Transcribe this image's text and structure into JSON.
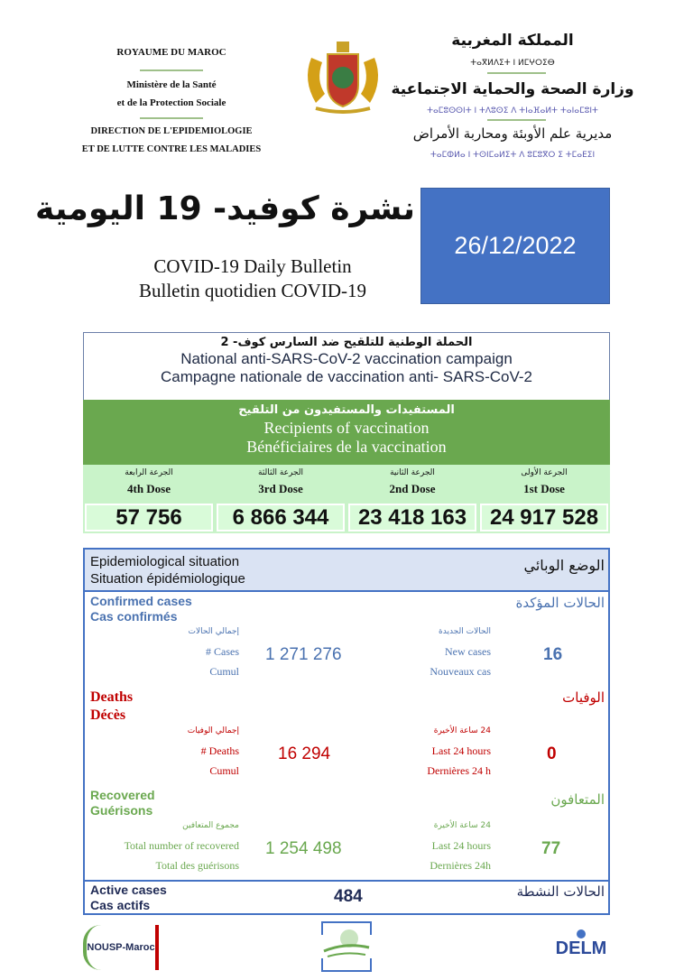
{
  "header": {
    "left": [
      "ROYAUME DU MAROC",
      "Ministère de la Santé",
      "et de la Protection Sociale",
      "DIRECTION DE L'EPIDEMIOLOGIE",
      "ET DE LUTTE CONTRE LES MALADIES"
    ],
    "right_ar": [
      "المملكة المغربية",
      "وزارة الصحة والحماية الاجتماعية",
      "مديرية علم الأوبئة ومحاربة الأمراض"
    ],
    "right_tif": [
      "ⵜⴰⴳⵍⴷⵉⵜ ⵏ ⵍⵎⵖⵔⵉⴱ",
      "ⵜⴰⵎⵓⵙⵙⵏⵜ ⵏ ⵜⴷⵓⵙⵉ ⴷ ⵜⵏⴰⴼⴰⵍⵜ ⵜⴰⵏⴰⵎⵓⵏⵜ",
      "ⵜⴰⵎⵀⵍⴰ ⵏ ⵜⵙⵏⵎⴰⵍⵉⵜ ⴷ ⵓⵎⵓⴳⵔ ⵉ ⵜⵎⴰⴹⵉⵏ"
    ]
  },
  "title": {
    "ar": "نشرة كوفيد- 19 اليومية",
    "en": "COVID-19 Daily Bulletin",
    "fr": "Bulletin quotidien COVID-19"
  },
  "date": "26/12/2022",
  "vaccination": {
    "campaign_ar": "الحملة الوطنية للتلقيح ضد السارس كوف- 2",
    "campaign_en": "National anti-SARS-CoV-2 vaccination campaign",
    "campaign_fr": "Campagne nationale de vaccination anti- SARS-CoV-2",
    "recipients_ar": "المستفيدات والمستفيدون من التلقيح",
    "recipients_en": "Recipients of vaccination",
    "recipients_fr": "Bénéficiaires de la vaccination",
    "doses": [
      {
        "ar": "الجرعة الرابعة",
        "label": "4th Dose",
        "value": "57 756"
      },
      {
        "ar": "الجرعة الثالثة",
        "label": "3rd Dose",
        "value": "6 866 344"
      },
      {
        "ar": "الجرعة الثانية",
        "label": "2nd Dose",
        "value": "23 418 163"
      },
      {
        "ar": "الجرعة الأولى",
        "label": "1st Dose",
        "value": "24 917 528"
      }
    ]
  },
  "epi": {
    "title_en": "Epidemiological situation",
    "title_fr": "Situation épidémiologique",
    "title_ar": "الوضع الوبائي",
    "confirmed": {
      "en": "Confirmed cases",
      "fr": "Cas confirmés",
      "ar": "الحالات المؤكدة",
      "cum_ar": "إجمالي الحالات",
      "cum_en": "# Cases",
      "cum_fr": "Cumul",
      "cum_value": "1 271 276",
      "new_ar": "الحالات الجديدة",
      "new_en": "New cases",
      "new_fr": "Nouveaux cas",
      "new_value": "16"
    },
    "deaths": {
      "en": "Deaths",
      "fr": "Décès",
      "ar": "الوفيات",
      "cum_ar": "إجمالي الوفيات",
      "cum_en": "# Deaths",
      "cum_fr": "Cumul",
      "cum_value": "16 294",
      "new_ar": "24 ساعة الأخيرة",
      "new_en": "Last 24 hours",
      "new_fr": "Dernières 24 h",
      "new_value": "0"
    },
    "recovered": {
      "en": "Recovered",
      "fr": "Guérisons",
      "ar": "المتعافون",
      "cum_ar": "مجموع المتعافين",
      "cum_en": "Total number of recovered",
      "cum_fr": "Total des guérisons",
      "cum_value": "1 254 498",
      "new_ar": "24 ساعة الأخيرة",
      "new_en": "Last 24 hours",
      "new_fr": "Dernières 24h",
      "new_value": "77"
    },
    "active": {
      "en": "Active cases",
      "fr": "Cas actifs",
      "ar": "الحالات النشطة",
      "value": "484"
    }
  },
  "footer": {
    "logo_left": "NOUSP-Maroc",
    "logo_right": "DELM"
  },
  "colors": {
    "blue": "#4472c4",
    "green": "#6aa84f",
    "red": "#c00000",
    "light_green": "#c9f3c9"
  }
}
